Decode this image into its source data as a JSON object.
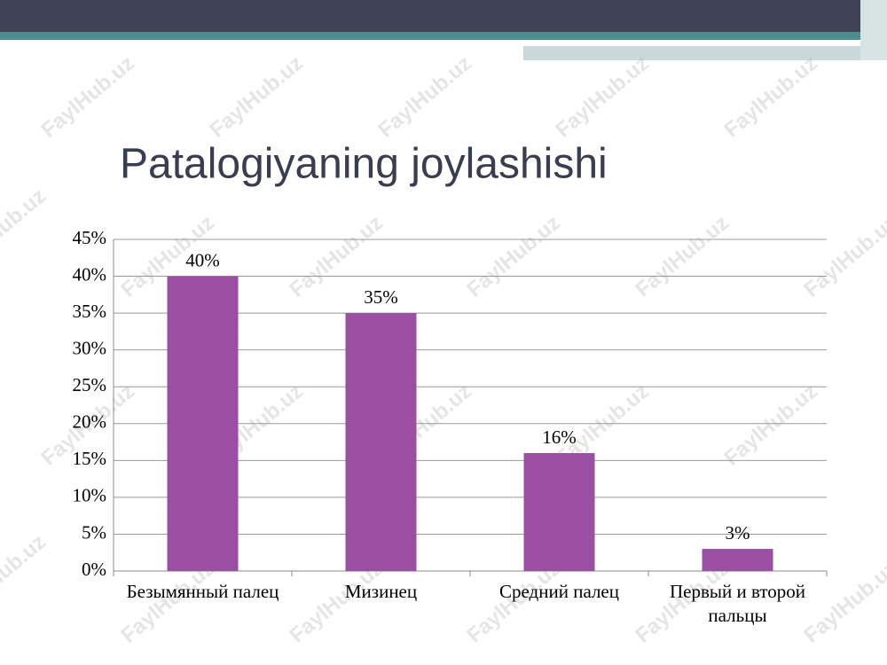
{
  "chart_data": {
    "type": "bar",
    "title": "Patalogiyaning joylashishi",
    "watermark": "FaylHub.uz",
    "categories": [
      "Безымянный палец",
      "Мизинец",
      "Средний палец",
      "Первый и второй пальцы"
    ],
    "values": [
      40,
      35,
      16,
      3
    ],
    "value_labels": [
      "40%",
      "35%",
      "16%",
      "3%"
    ],
    "color": "#9b4fa3",
    "ylim": [
      0,
      45
    ],
    "yticks": [
      {
        "value": 0,
        "label": "0%"
      },
      {
        "value": 5,
        "label": "5%"
      },
      {
        "value": 10,
        "label": "10%"
      },
      {
        "value": 15,
        "label": "15%"
      },
      {
        "value": 20,
        "label": "20%"
      },
      {
        "value": 25,
        "label": "25%"
      },
      {
        "value": 30,
        "label": "30%"
      },
      {
        "value": 35,
        "label": "35%"
      },
      {
        "value": 40,
        "label": "40%"
      },
      {
        "value": 45,
        "label": "45%"
      }
    ],
    "grid": true
  }
}
